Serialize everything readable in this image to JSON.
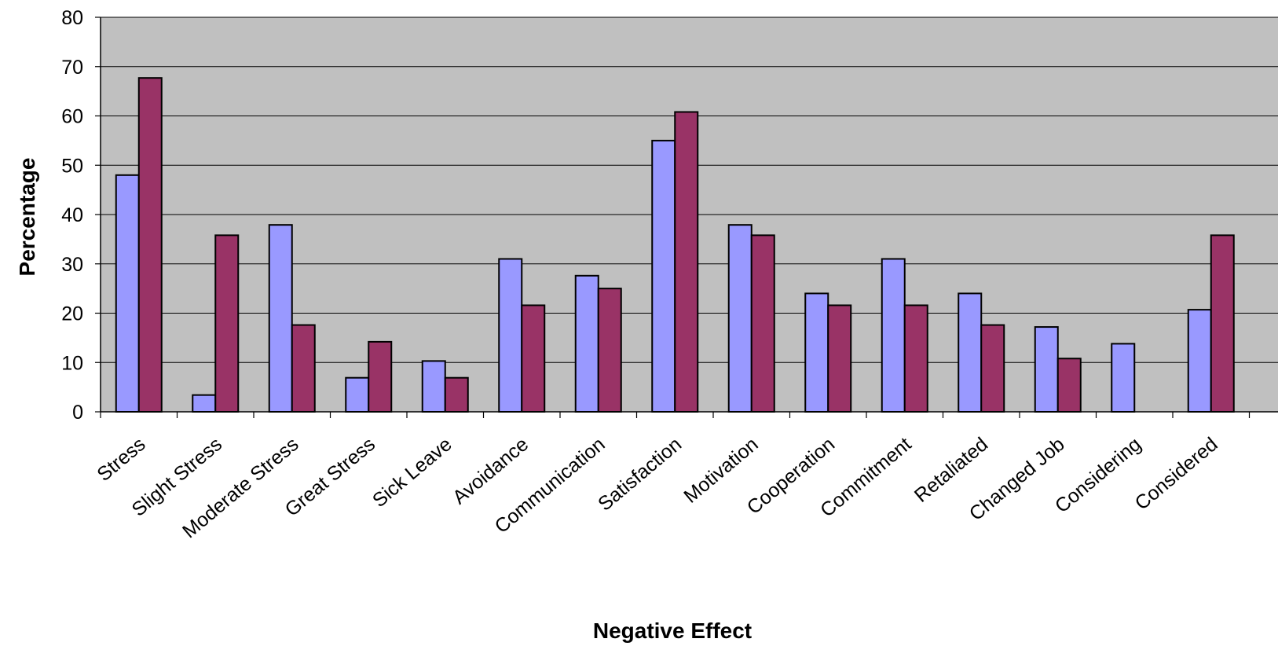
{
  "chart_data": {
    "type": "bar",
    "title": "",
    "xlabel": "Negative Effect",
    "ylabel": "Percentage",
    "ylim": [
      0,
      80
    ],
    "yticks": [
      0,
      10,
      20,
      30,
      40,
      50,
      60,
      70,
      80
    ],
    "grid": true,
    "legend": "none",
    "categories": [
      "Stress",
      "Slight Stress",
      "Moderate Stress",
      "Great Stress",
      "Sick Leave",
      "Avoidance",
      "Communication",
      "Satisfaction",
      "Motivation",
      "Cooperation",
      "Commitment",
      "Retaliated",
      "Changed Job",
      "Considering",
      "Considered"
    ],
    "series": [
      {
        "values": [
          48,
          3.4,
          37.9,
          6.9,
          10.3,
          31,
          27.6,
          55,
          37.9,
          24,
          31,
          24,
          17.2,
          13.8,
          20.7
        ],
        "color": "#9999ff"
      },
      {
        "values": [
          67.7,
          35.8,
          17.6,
          14.2,
          6.9,
          21.6,
          25,
          60.8,
          35.8,
          21.6,
          21.6,
          17.6,
          10.8,
          0,
          35.8
        ],
        "color": "#993366"
      }
    ],
    "plot_background": "#c0c0c0"
  }
}
